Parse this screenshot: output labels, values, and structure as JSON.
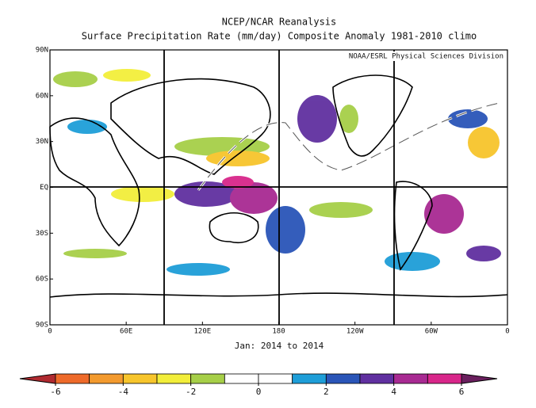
{
  "title": "NCEP/NCAR Reanalysis",
  "subtitle": "Surface Precipitation Rate (mm/day) Composite Anomaly 1981-2010 climo",
  "credit": "NOAA/ESRL Physical Sciences Division",
  "x_label": "Jan: 2014 to 2014",
  "lat_labels": [
    "90N",
    "60N",
    "30N",
    "EQ",
    "30S",
    "60S",
    "90S"
  ],
  "lon_labels": [
    "0",
    "60E",
    "120E",
    "180",
    "120W",
    "60W",
    "0"
  ],
  "colorbar": {
    "ticks": [
      -6,
      -4,
      -2,
      0,
      2,
      4,
      6
    ],
    "under_color": "#b02a30",
    "colors": [
      "#ee6a2a",
      "#f39a2e",
      "#f7c52c",
      "#f2ee3a",
      "#a6cf48",
      "#ffffff",
      "#ffffff",
      "#1e9ed8",
      "#2a55b8",
      "#6030a0",
      "#a82a92",
      "#d8268a"
    ],
    "over_color": "#6a1f5e"
  }
}
